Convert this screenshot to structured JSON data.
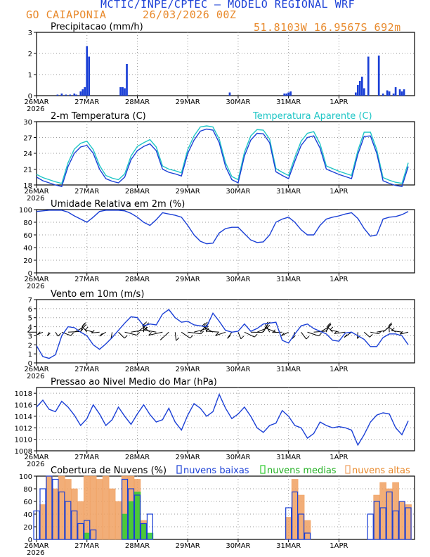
{
  "header": {
    "title": "MCTIC/INPE/CPTEC — MODELO REGIONAL WRF",
    "location": "GO CAIAPONIA",
    "date": "26/03/2026 00Z",
    "coords": "51.8103W 16.9567S 692m"
  },
  "x_axis": {
    "ticks": [
      "26MAR",
      "27MAR",
      "28MAR",
      "29MAR",
      "30MAR",
      "31MAR",
      "1APR"
    ],
    "year": "2026"
  },
  "colors": {
    "blue": "#1a3fd6",
    "cyan": "#1fc6c6",
    "green": "#2ecc2e",
    "orange": "#f0a060",
    "header_orange": "#e8892b",
    "grid": "#9a9a9a"
  },
  "chart_data": [
    {
      "id": "precip",
      "type": "bar",
      "title": "Precipitacao (mm/h)",
      "ylim": [
        0,
        3
      ],
      "yticks": [
        0,
        1,
        2,
        3
      ],
      "x_hours": [
        10,
        12,
        14,
        16,
        18,
        19,
        21,
        22,
        23,
        24,
        25,
        40,
        41,
        42,
        43,
        92,
        118,
        119,
        120,
        121,
        152,
        153,
        154,
        155,
        156,
        158,
        163,
        165,
        167,
        168,
        170,
        171,
        173,
        174,
        175
      ],
      "values": [
        0.05,
        0.1,
        0.05,
        0.05,
        0.1,
        0.05,
        0.2,
        0.3,
        0.4,
        2.35,
        1.85,
        0.4,
        0.4,
        0.35,
        1.5,
        0.15,
        0.1,
        0.1,
        0.15,
        0.2,
        0.15,
        0.5,
        0.7,
        0.9,
        0.35,
        1.85,
        1.9,
        0.1,
        0.25,
        0.2,
        0.1,
        0.4,
        0.3,
        0.2,
        0.3
      ]
    },
    {
      "id": "temp",
      "type": "line",
      "title": "2-m Temperatura (C)",
      "legend": "Temperatura Aparente (C)",
      "ylim": [
        18,
        30
      ],
      "yticks": [
        18,
        21,
        24,
        27,
        30
      ],
      "x_hours": [
        0,
        3,
        6,
        9,
        12,
        15,
        18,
        21,
        24,
        27,
        30,
        33,
        36,
        39,
        42,
        45,
        48,
        51,
        54,
        57,
        60,
        63,
        66,
        69,
        72,
        75,
        78,
        81,
        84,
        87,
        90,
        93,
        96,
        99,
        102,
        105,
        108,
        111,
        114,
        117,
        120,
        123,
        126,
        129,
        132,
        135,
        138,
        141,
        144,
        147,
        150,
        153,
        156,
        159,
        162,
        165,
        168,
        171,
        174,
        177
      ],
      "series": [
        {
          "name": "2-m Temperatura (C)",
          "values": [
            19.5,
            18.8,
            18.4,
            18.0,
            17.7,
            21.5,
            24.0,
            25.2,
            25.5,
            24.0,
            21.0,
            19.2,
            18.7,
            18.4,
            19.5,
            22.8,
            24.5,
            25.3,
            25.8,
            24.5,
            21.0,
            20.4,
            20.1,
            19.7,
            24.0,
            26.5,
            28.2,
            28.6,
            28.4,
            26.0,
            21.5,
            19.0,
            18.4,
            23.5,
            26.5,
            27.8,
            27.7,
            26.0,
            20.5,
            19.8,
            19.2,
            22.5,
            25.5,
            27.0,
            27.3,
            25.0,
            21.0,
            20.5,
            20.0,
            19.6,
            19.2,
            23.8,
            27.2,
            27.3,
            24.0,
            18.8,
            18.3,
            17.9,
            17.7,
            21.5
          ]
        },
        {
          "name": "Temperatura Aparente (C)",
          "values": [
            20.0,
            19.4,
            19.0,
            18.6,
            18.3,
            22.2,
            24.8,
            25.9,
            26.3,
            24.7,
            21.7,
            19.8,
            19.3,
            19.0,
            20.1,
            23.5,
            25.3,
            26.0,
            26.6,
            25.2,
            21.6,
            21.0,
            20.7,
            20.3,
            24.7,
            27.3,
            29.0,
            29.2,
            29.0,
            26.7,
            22.2,
            19.6,
            19.0,
            24.2,
            27.3,
            28.5,
            28.4,
            26.7,
            21.1,
            20.4,
            19.8,
            23.2,
            26.3,
            27.8,
            28.1,
            25.8,
            21.6,
            21.1,
            20.6,
            20.2,
            19.8,
            24.5,
            28.0,
            28.0,
            24.7,
            19.4,
            18.9,
            18.5,
            18.3,
            22.2
          ]
        }
      ]
    },
    {
      "id": "rh",
      "type": "line",
      "title": "Umidade Relativa em 2m (%)",
      "ylim": [
        0,
        100
      ],
      "yticks": [
        0,
        20,
        40,
        60,
        80,
        100
      ],
      "x_hours": [
        0,
        3,
        6,
        9,
        12,
        15,
        18,
        21,
        24,
        27,
        30,
        33,
        36,
        39,
        42,
        45,
        48,
        51,
        54,
        57,
        60,
        63,
        66,
        69,
        72,
        75,
        78,
        81,
        84,
        87,
        90,
        93,
        96,
        99,
        102,
        105,
        108,
        111,
        114,
        117,
        120,
        123,
        126,
        129,
        132,
        135,
        138,
        141,
        144,
        147,
        150,
        153,
        156,
        159,
        162,
        165,
        168,
        171,
        174,
        177
      ],
      "series": [
        {
          "name": "Umidade Relativa em 2m (%)",
          "values": [
            97,
            98,
            99,
            99,
            99,
            96,
            90,
            85,
            80,
            88,
            97,
            99,
            99,
            99,
            98,
            94,
            88,
            80,
            75,
            84,
            95,
            93,
            91,
            88,
            75,
            60,
            50,
            46,
            47,
            63,
            70,
            72,
            72,
            62,
            52,
            48,
            49,
            60,
            80,
            85,
            88,
            80,
            68,
            60,
            60,
            75,
            85,
            88,
            90,
            93,
            95,
            86,
            70,
            58,
            60,
            85,
            88,
            89,
            92,
            97
          ]
        }
      ]
    },
    {
      "id": "wind",
      "type": "line",
      "title": "Vento em 10m (m/s)",
      "ylim": [
        0,
        7
      ],
      "yticks": [
        0,
        1,
        2,
        3,
        4,
        5,
        6,
        7
      ],
      "barb_level": 3.4,
      "x_hours": [
        0,
        3,
        6,
        9,
        12,
        15,
        18,
        21,
        24,
        27,
        30,
        33,
        36,
        39,
        42,
        45,
        48,
        51,
        54,
        57,
        60,
        63,
        66,
        69,
        72,
        75,
        78,
        81,
        84,
        87,
        90,
        93,
        96,
        99,
        102,
        105,
        108,
        111,
        114,
        117,
        120,
        123,
        126,
        129,
        132,
        135,
        138,
        141,
        144,
        147,
        150,
        153,
        156,
        159,
        162,
        165,
        168,
        171,
        174,
        177
      ],
      "series": [
        {
          "name": "Vento em 10m (m/s)",
          "values": [
            1.9,
            0.7,
            0.5,
            0.9,
            3.0,
            4.0,
            3.9,
            3.4,
            3.0,
            2.0,
            1.5,
            2.1,
            2.8,
            3.6,
            4.4,
            5.1,
            5.0,
            4.1,
            4.3,
            4.2,
            5.4,
            5.9,
            5.0,
            4.5,
            4.6,
            4.2,
            4.1,
            4.0,
            5.5,
            4.6,
            3.6,
            3.4,
            3.5,
            4.3,
            3.5,
            3.8,
            4.3,
            4.4,
            4.5,
            2.5,
            2.2,
            3.2,
            4.1,
            4.3,
            3.8,
            3.5,
            3.2,
            2.5,
            2.4,
            3.3,
            3.4,
            3.0,
            2.6,
            1.8,
            1.8,
            2.8,
            3.2,
            3.2,
            3.0,
            2.0
          ]
        }
      ]
    },
    {
      "id": "pressure",
      "type": "line",
      "title": "Pressao ao Nivel Medio do Mar (hPa)",
      "ylim": [
        1008,
        1019
      ],
      "yticks": [
        1008,
        1010,
        1012,
        1014,
        1016,
        1018
      ],
      "x_hours": [
        0,
        3,
        6,
        9,
        12,
        15,
        18,
        21,
        24,
        27,
        30,
        33,
        36,
        39,
        42,
        45,
        48,
        51,
        54,
        57,
        60,
        63,
        66,
        69,
        72,
        75,
        78,
        81,
        84,
        87,
        90,
        93,
        96,
        99,
        102,
        105,
        108,
        111,
        114,
        117,
        120,
        123,
        126,
        129,
        132,
        135,
        138,
        141,
        144,
        147,
        150,
        153,
        156,
        159,
        162,
        165,
        168,
        171,
        174,
        177
      ],
      "series": [
        {
          "name": "Pressao ao Nivel Medio do Mar (hPa)",
          "values": [
            1015.6,
            1016.8,
            1015.2,
            1014.8,
            1016.6,
            1015.6,
            1014.2,
            1012.4,
            1013.6,
            1016.0,
            1014.4,
            1012.4,
            1013.4,
            1015.6,
            1014.0,
            1012.6,
            1014.4,
            1016.0,
            1014.3,
            1013.0,
            1013.4,
            1015.4,
            1013.0,
            1011.6,
            1014.2,
            1016.2,
            1015.4,
            1014.0,
            1014.8,
            1017.8,
            1015.4,
            1013.6,
            1014.4,
            1015.6,
            1014.0,
            1012.0,
            1011.2,
            1012.4,
            1012.8,
            1015.0,
            1014.0,
            1012.4,
            1012.0,
            1010.2,
            1011.0,
            1013.0,
            1012.4,
            1012.0,
            1012.2,
            1012.0,
            1011.6,
            1009.0,
            1010.8,
            1013.0,
            1014.2,
            1014.6,
            1014.4,
            1012.0,
            1010.8,
            1013.2
          ]
        }
      ]
    },
    {
      "id": "clouds",
      "type": "bar",
      "title": "Cobertura de Nuvens (%)",
      "legend": [
        "nuvens baixas",
        "nuvens medias",
        "nuvens altas"
      ],
      "ylim": [
        0,
        100
      ],
      "yticks": [
        0,
        20,
        40,
        60,
        80,
        100
      ],
      "x_hours": [
        0,
        3,
        6,
        9,
        12,
        15,
        18,
        21,
        24,
        27,
        30,
        33,
        36,
        39,
        42,
        45,
        48,
        51,
        54,
        57,
        60,
        63,
        66,
        69,
        72,
        75,
        78,
        81,
        84,
        87,
        90,
        93,
        96,
        99,
        102,
        105,
        108,
        111,
        114,
        117,
        120,
        123,
        126,
        129,
        132,
        135,
        138,
        141,
        144,
        147,
        150,
        153,
        156,
        159,
        162,
        165,
        168,
        171,
        174,
        177
      ],
      "series": [
        {
          "name": "nuvens baixas",
          "values": [
            45,
            80,
            100,
            95,
            75,
            60,
            45,
            25,
            30,
            15,
            0,
            0,
            0,
            0,
            95,
            80,
            70,
            25,
            40,
            0,
            0,
            0,
            0,
            0,
            0,
            0,
            0,
            0,
            0,
            0,
            0,
            0,
            0,
            0,
            0,
            0,
            0,
            0,
            0,
            0,
            50,
            75,
            40,
            10,
            0,
            0,
            0,
            0,
            0,
            0,
            0,
            0,
            0,
            40,
            60,
            50,
            75,
            45,
            60,
            50
          ]
        },
        {
          "name": "nuvens medias",
          "values": [
            0,
            0,
            0,
            0,
            0,
            0,
            0,
            0,
            10,
            0,
            0,
            0,
            0,
            0,
            40,
            60,
            75,
            25,
            10,
            0,
            0,
            0,
            0,
            0,
            0,
            0,
            0,
            0,
            0,
            0,
            0,
            0,
            0,
            0,
            0,
            0,
            0,
            0,
            0,
            0,
            0,
            0,
            0,
            0,
            0,
            0,
            0,
            0,
            0,
            0,
            0,
            0,
            0,
            0,
            0,
            0,
            0,
            0,
            0,
            0
          ]
        },
        {
          "name": "nuvens altas",
          "values": [
            0,
            55,
            100,
            80,
            100,
            95,
            80,
            60,
            100,
            100,
            95,
            100,
            80,
            60,
            100,
            100,
            95,
            30,
            0,
            0,
            0,
            0,
            0,
            0,
            0,
            0,
            0,
            0,
            0,
            0,
            0,
            0,
            0,
            0,
            0,
            0,
            0,
            0,
            0,
            0,
            35,
            95,
            70,
            30,
            0,
            0,
            0,
            0,
            0,
            0,
            0,
            0,
            0,
            0,
            70,
            90,
            80,
            90,
            60,
            55
          ]
        }
      ]
    }
  ]
}
